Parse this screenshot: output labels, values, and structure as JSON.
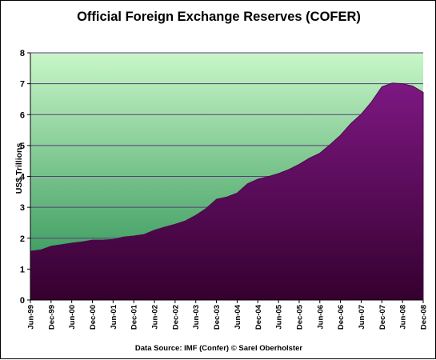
{
  "chart_data": {
    "type": "area",
    "title": "Official Foreign Exchange Reserves (COFER)",
    "xlabel": "",
    "ylabel": "US$ Trillions",
    "ylim": [
      0,
      8
    ],
    "yticks": [
      "0",
      "1",
      "2",
      "3",
      "4",
      "5",
      "6",
      "7",
      "8"
    ],
    "grid": true,
    "source_note": "Data Source: IMF (Confer)    © Sarel Oberholster",
    "categories": [
      "Jun-99",
      "Sep-99",
      "Dec-99",
      "Mar-00",
      "Jun-00",
      "Sep-00",
      "Dec-00",
      "Mar-01",
      "Jun-01",
      "Sep-01",
      "Dec-01",
      "Mar-02",
      "Jun-02",
      "Sep-02",
      "Dec-02",
      "Mar-03",
      "Jun-03",
      "Sep-03",
      "Dec-03",
      "Mar-04",
      "Jun-04",
      "Sep-04",
      "Dec-04",
      "Mar-05",
      "Jun-05",
      "Sep-05",
      "Dec-05",
      "Mar-06",
      "Jun-06",
      "Sep-06",
      "Dec-06",
      "Mar-07",
      "Jun-07",
      "Sep-07",
      "Dec-07",
      "Mar-08",
      "Jun-08",
      "Sep-08",
      "Dec-08"
    ],
    "tick_labels": [
      "Jun-99",
      "Dec-99",
      "Jun-00",
      "Dec-00",
      "Jun-01",
      "Dec-01",
      "Jun-02",
      "Dec-02",
      "Jun-03",
      "Dec-03",
      "Jun-04",
      "Dec-04",
      "Jun-05",
      "Dec-05",
      "Jun-06",
      "Dec-06",
      "Jun-07",
      "Dec-07",
      "Jun-08",
      "Dec-08"
    ],
    "values": [
      1.58,
      1.62,
      1.74,
      1.79,
      1.84,
      1.88,
      1.94,
      1.94,
      1.96,
      2.04,
      2.07,
      2.12,
      2.26,
      2.36,
      2.45,
      2.56,
      2.74,
      2.96,
      3.26,
      3.33,
      3.46,
      3.76,
      3.91,
      3.99,
      4.09,
      4.22,
      4.39,
      4.59,
      4.75,
      5.03,
      5.33,
      5.71,
      6.01,
      6.41,
      6.9,
      7.02,
      7.0,
      6.92,
      6.72
    ],
    "colors": {
      "fill_top": "#7d1882",
      "fill_bottom": "#35002f",
      "stroke": "#4a0a4a",
      "bg_top": "#c8f7c8",
      "bg_bottom": "#228b4c",
      "gridline": "#5a3a7a"
    }
  }
}
